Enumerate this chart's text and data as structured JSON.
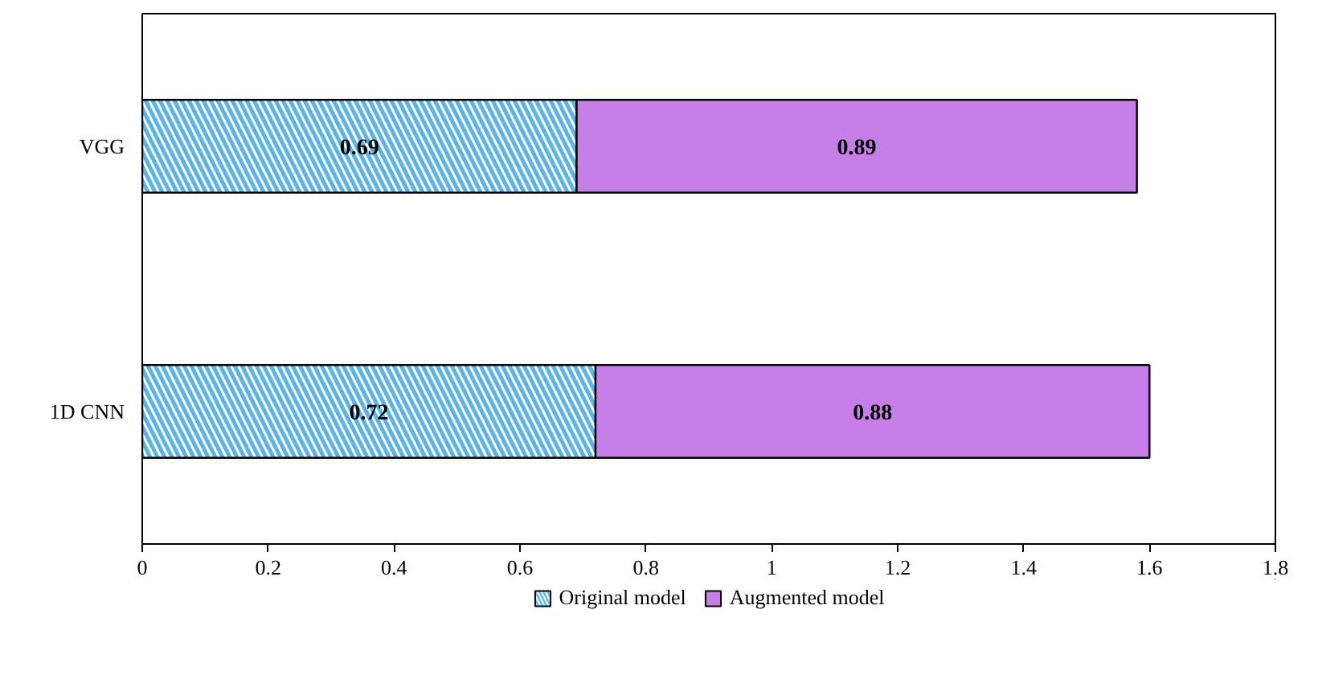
{
  "chart_data": {
    "type": "bar",
    "orientation": "horizontal",
    "stacked": true,
    "categories": [
      "VGG",
      "1D CNN"
    ],
    "series": [
      {
        "name": "Original model",
        "color": "#5bb4e5",
        "values": [
          0.69,
          0.72
        ]
      },
      {
        "name": "Augmented model",
        "color": "#c77fe8",
        "values": [
          0.89,
          0.88
        ]
      }
    ],
    "xlim": [
      0,
      1.8
    ],
    "xticks": [
      0,
      0.2,
      0.4,
      0.6,
      0.8,
      1,
      1.2,
      1.4,
      1.6,
      1.8
    ],
    "data_labels": true,
    "legend": "bottom",
    "grid": false
  }
}
